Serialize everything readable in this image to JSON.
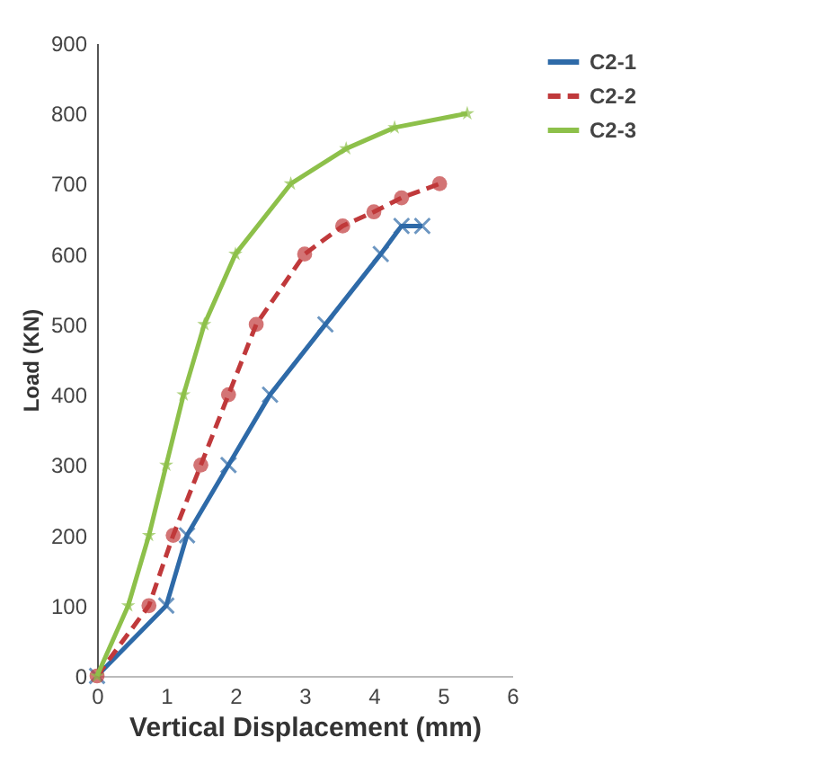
{
  "chart_data": {
    "type": "line",
    "xlabel": "Vertical Displacement (mm)",
    "ylabel": "Load (KN)",
    "xlim": [
      0,
      6
    ],
    "xticks": [
      0,
      1,
      2,
      3,
      4,
      5,
      6
    ],
    "ylim": [
      0,
      900
    ],
    "yticks": [
      0,
      100,
      200,
      300,
      400,
      500,
      600,
      700,
      800,
      900
    ],
    "grid": false,
    "legend": "right",
    "series": [
      {
        "name": "C2-1",
        "color": "#2e6aa8",
        "marker": "cross",
        "line_style": "solid",
        "x": [
          0,
          1.0,
          1.3,
          1.9,
          2.5,
          3.3,
          4.1,
          4.4,
          4.7
        ],
        "values": [
          0,
          100,
          200,
          300,
          400,
          500,
          600,
          640,
          640
        ]
      },
      {
        "name": "C2-2",
        "color": "#c0393b",
        "marker": "circle",
        "line_style": "dashed",
        "x": [
          0,
          0.75,
          1.1,
          1.5,
          1.9,
          2.3,
          3.0,
          3.55,
          4.0,
          4.4,
          4.95
        ],
        "values": [
          0,
          100,
          200,
          300,
          400,
          500,
          600,
          640,
          660,
          680,
          700
        ]
      },
      {
        "name": "C2-3",
        "color": "#8dc04a",
        "marker": "star",
        "line_style": "solid",
        "x": [
          0,
          0.45,
          0.75,
          1.0,
          1.25,
          1.55,
          2.0,
          2.8,
          3.6,
          4.3,
          5.35
        ],
        "values": [
          0,
          100,
          200,
          300,
          400,
          500,
          600,
          700,
          750,
          780,
          800
        ]
      }
    ]
  }
}
